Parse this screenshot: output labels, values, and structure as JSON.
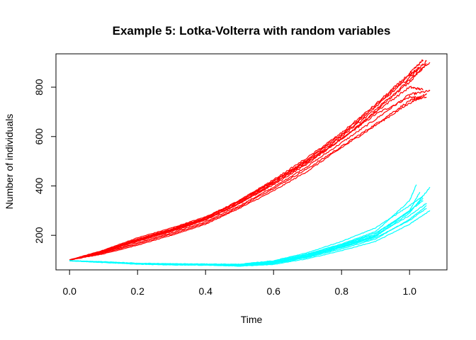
{
  "chart_data": {
    "type": "line",
    "title": "Example 5: Lotka-Volterra with random variables",
    "xlabel": "Time",
    "ylabel": "Number of individuals",
    "xlim": [
      -0.04,
      1.11
    ],
    "ylim": [
      60,
      935
    ],
    "xticks": [
      0.0,
      0.2,
      0.4,
      0.6,
      0.8,
      1.0
    ],
    "xtick_labels": [
      "0.0",
      "0.2",
      "0.4",
      "0.6",
      "0.8",
      "1.0"
    ],
    "yticks": [
      200,
      400,
      600,
      800
    ],
    "ytick_labels": [
      "200",
      "400",
      "600",
      "800"
    ],
    "grid": false,
    "legend": "none",
    "series_colors": [
      "#ff0000",
      "#00ffff"
    ],
    "series": [
      {
        "color": "#ff0000",
        "x": [
          0,
          0.1,
          0.2,
          0.3,
          0.4,
          0.5,
          0.6,
          0.7,
          0.8,
          0.9,
          1.0,
          1.04
        ],
        "y": [
          100,
          135,
          180,
          220,
          265,
          330,
          410,
          495,
          590,
          690,
          760,
          755
        ]
      },
      {
        "color": "#ff0000",
        "x": [
          0,
          0.1,
          0.2,
          0.3,
          0.4,
          0.5,
          0.6,
          0.7,
          0.8,
          0.9,
          1.0,
          1.06
        ],
        "y": [
          100,
          130,
          170,
          210,
          255,
          320,
          395,
          480,
          575,
          670,
          770,
          785
        ]
      },
      {
        "color": "#ff0000",
        "x": [
          0,
          0.1,
          0.2,
          0.3,
          0.4,
          0.5,
          0.6,
          0.7,
          0.8,
          0.9,
          1.0,
          1.05
        ],
        "y": [
          100,
          128,
          165,
          205,
          250,
          315,
          390,
          470,
          560,
          650,
          745,
          760
        ]
      },
      {
        "color": "#ff0000",
        "x": [
          0,
          0.1,
          0.2,
          0.3,
          0.4,
          0.5,
          0.6,
          0.7,
          0.8,
          0.9,
          1.0,
          1.04
        ],
        "y": [
          100,
          140,
          190,
          230,
          275,
          340,
          420,
          500,
          590,
          700,
          800,
          790
        ]
      },
      {
        "color": "#ff0000",
        "x": [
          0,
          0.1,
          0.2,
          0.3,
          0.4,
          0.5,
          0.6,
          0.7,
          0.8,
          0.9,
          1.0,
          1.05
        ],
        "y": [
          100,
          125,
          160,
          200,
          245,
          310,
          380,
          460,
          555,
          645,
          735,
          775
        ]
      },
      {
        "color": "#ff0000",
        "x": [
          0,
          0.1,
          0.2,
          0.3,
          0.4,
          0.5,
          0.6,
          0.7,
          0.8,
          0.9,
          1.0,
          1.06
        ],
        "y": [
          100,
          132,
          175,
          215,
          262,
          328,
          405,
          490,
          590,
          700,
          830,
          900
        ]
      },
      {
        "color": "#ff0000",
        "x": [
          0,
          0.1,
          0.2,
          0.3,
          0.4,
          0.5,
          0.6,
          0.7,
          0.8,
          0.9,
          1.0,
          1.05
        ],
        "y": [
          100,
          136,
          182,
          222,
          268,
          338,
          420,
          505,
          605,
          720,
          840,
          905
        ]
      },
      {
        "color": "#ff0000",
        "x": [
          0,
          0.1,
          0.2,
          0.3,
          0.4,
          0.5,
          0.6,
          0.7,
          0.8,
          0.9,
          1.0,
          1.04
        ],
        "y": [
          100,
          138,
          185,
          226,
          272,
          342,
          425,
          515,
          615,
          730,
          855,
          910
        ]
      },
      {
        "color": "#ff0000",
        "x": [
          0,
          0.1,
          0.2,
          0.3,
          0.4,
          0.5,
          0.6,
          0.7,
          0.8,
          0.9,
          1.0,
          1.05
        ],
        "y": [
          100,
          134,
          178,
          218,
          264,
          332,
          412,
          500,
          600,
          710,
          820,
          895
        ]
      },
      {
        "color": "#ff0000",
        "x": [
          0,
          0.1,
          0.2,
          0.3,
          0.4,
          0.5,
          0.6,
          0.7,
          0.8,
          0.9,
          1.0,
          1.03
        ],
        "y": [
          100,
          137,
          184,
          224,
          270,
          336,
          418,
          508,
          610,
          725,
          850,
          880
        ]
      },
      {
        "color": "#00ffff",
        "x": [
          0,
          0.1,
          0.2,
          0.3,
          0.4,
          0.5,
          0.6,
          0.7,
          0.8,
          0.9,
          1.0,
          1.02
        ],
        "y": [
          97,
          92,
          85,
          83,
          82,
          82,
          95,
          125,
          165,
          215,
          340,
          405
        ]
      },
      {
        "color": "#00ffff",
        "x": [
          0,
          0.1,
          0.2,
          0.3,
          0.4,
          0.5,
          0.6,
          0.7,
          0.8,
          0.9,
          1.0,
          1.06
        ],
        "y": [
          97,
          91,
          84,
          81,
          80,
          78,
          88,
          115,
          152,
          195,
          290,
          395
        ]
      },
      {
        "color": "#00ffff",
        "x": [
          0,
          0.1,
          0.2,
          0.3,
          0.4,
          0.5,
          0.6,
          0.7,
          0.8,
          0.9,
          1.0,
          1.04
        ],
        "y": [
          97,
          92,
          86,
          84,
          82,
          81,
          92,
          120,
          160,
          205,
          300,
          340
        ]
      },
      {
        "color": "#00ffff",
        "x": [
          0,
          0.1,
          0.2,
          0.3,
          0.4,
          0.5,
          0.6,
          0.7,
          0.8,
          0.9,
          1.0,
          1.05
        ],
        "y": [
          97,
          90,
          83,
          80,
          79,
          76,
          85,
          110,
          145,
          185,
          265,
          320
        ]
      },
      {
        "color": "#00ffff",
        "x": [
          0,
          0.1,
          0.2,
          0.3,
          0.4,
          0.5,
          0.6,
          0.7,
          0.8,
          0.9,
          1.0,
          1.06
        ],
        "y": [
          97,
          91,
          84,
          81,
          80,
          75,
          82,
          105,
          138,
          175,
          245,
          300
        ]
      },
      {
        "color": "#00ffff",
        "x": [
          0,
          0.1,
          0.2,
          0.3,
          0.4,
          0.5,
          0.6,
          0.7,
          0.8,
          0.9,
          1.0,
          1.04
        ],
        "y": [
          97,
          93,
          87,
          85,
          84,
          83,
          97,
          130,
          175,
          230,
          320,
          360
        ]
      },
      {
        "color": "#00ffff",
        "x": [
          0,
          0.1,
          0.2,
          0.3,
          0.4,
          0.5,
          0.6,
          0.7,
          0.8,
          0.9,
          1.0,
          1.05
        ],
        "y": [
          97,
          92,
          86,
          84,
          83,
          80,
          90,
          118,
          158,
          200,
          280,
          330
        ]
      },
      {
        "color": "#00ffff",
        "x": [
          0,
          0.1,
          0.2,
          0.3,
          0.4,
          0.5,
          0.6,
          0.7,
          0.8,
          0.9,
          1.0,
          1.03
        ],
        "y": [
          97,
          91,
          85,
          82,
          81,
          79,
          89,
          116,
          155,
          198,
          300,
          375
        ]
      },
      {
        "color": "#00ffff",
        "x": [
          0,
          0.1,
          0.2,
          0.3,
          0.4,
          0.5,
          0.6,
          0.7,
          0.8,
          0.9,
          1.0,
          1.05
        ],
        "y": [
          97,
          90,
          84,
          81,
          80,
          77,
          86,
          112,
          150,
          190,
          260,
          310
        ]
      },
      {
        "color": "#00ffff",
        "x": [
          0,
          0.1,
          0.2,
          0.3,
          0.4,
          0.5,
          0.6,
          0.7,
          0.8,
          0.9,
          1.0,
          1.04
        ],
        "y": [
          97,
          92,
          85,
          83,
          82,
          80,
          93,
          122,
          162,
          210,
          295,
          350
        ]
      }
    ]
  }
}
